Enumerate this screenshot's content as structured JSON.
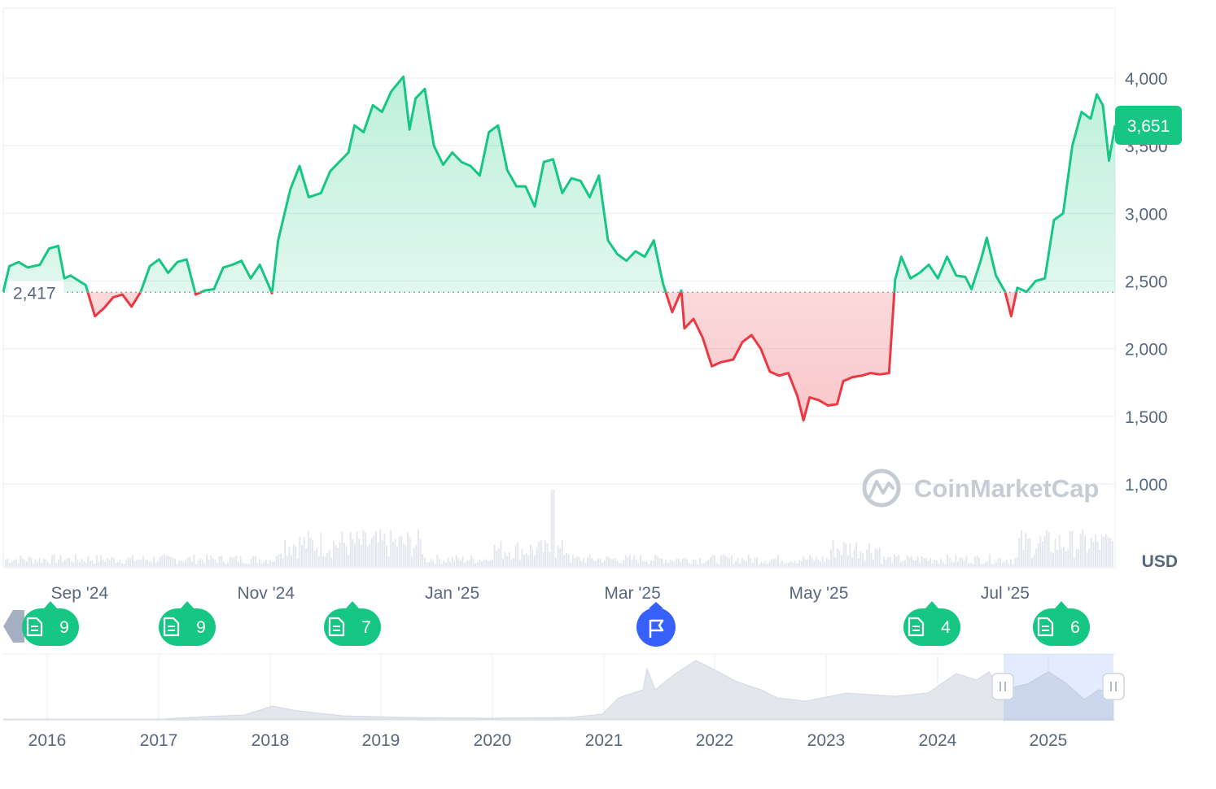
{
  "colors": {
    "up": "#16c784",
    "down": "#ea3943",
    "grid": "#eff2f5",
    "text": "#58667e",
    "volume": "#e4e8ee",
    "news_flag": "#3861fb",
    "navigator_fill": "#dfe3e9",
    "navigator_selection": "#dfe7fb"
  },
  "chart_data": {
    "type": "area",
    "currency_label": "USD",
    "y_ticks": [
      1000,
      1500,
      2000,
      2500,
      3000,
      3500,
      4000
    ],
    "y_tick_labels": [
      "1,000",
      "1,500",
      "2,000",
      "2,500",
      "3,000",
      "3,500",
      "4,000"
    ],
    "ylim": [
      900,
      4500
    ],
    "baseline_value": 2417,
    "baseline_label": "2,417",
    "current_price": 3651,
    "current_price_label": "3,651",
    "x_tick_labels": [
      "Sep '24",
      "Nov '24",
      "Jan '25",
      "Mar '25",
      "May '25",
      "Jul '25"
    ],
    "x_tick_dates": [
      "2024-09-01",
      "2024-11-01",
      "2025-01-01",
      "2025-03-01",
      "2025-05-01",
      "2025-07-01"
    ],
    "x_range": [
      "2024-08-07",
      "2025-08-06"
    ],
    "series": [
      {
        "points": [
          [
            "2024-08-07",
            2420
          ],
          [
            "2024-08-09",
            2610
          ],
          [
            "2024-08-12",
            2640
          ],
          [
            "2024-08-15",
            2600
          ],
          [
            "2024-08-19",
            2620
          ],
          [
            "2024-08-22",
            2740
          ],
          [
            "2024-08-25",
            2760
          ],
          [
            "2024-08-27",
            2520
          ],
          [
            "2024-08-29",
            2540
          ],
          [
            "2024-09-03",
            2470
          ],
          [
            "2024-09-06",
            2240
          ],
          [
            "2024-09-09",
            2300
          ],
          [
            "2024-09-12",
            2380
          ],
          [
            "2024-09-15",
            2400
          ],
          [
            "2024-09-18",
            2310
          ],
          [
            "2024-09-21",
            2420
          ],
          [
            "2024-09-24",
            2610
          ],
          [
            "2024-09-27",
            2660
          ],
          [
            "2024-09-30",
            2560
          ],
          [
            "2024-10-03",
            2640
          ],
          [
            "2024-10-06",
            2660
          ],
          [
            "2024-10-09",
            2400
          ],
          [
            "2024-10-12",
            2430
          ],
          [
            "2024-10-15",
            2440
          ],
          [
            "2024-10-18",
            2600
          ],
          [
            "2024-10-21",
            2620
          ],
          [
            "2024-10-24",
            2650
          ],
          [
            "2024-10-27",
            2520
          ],
          [
            "2024-10-30",
            2620
          ],
          [
            "2024-11-03",
            2410
          ],
          [
            "2024-11-05",
            2800
          ],
          [
            "2024-11-09",
            3180
          ],
          [
            "2024-11-12",
            3350
          ],
          [
            "2024-11-15",
            3120
          ],
          [
            "2024-11-19",
            3150
          ],
          [
            "2024-11-22",
            3310
          ],
          [
            "2024-11-25",
            3380
          ],
          [
            "2024-11-28",
            3450
          ],
          [
            "2024-11-30",
            3650
          ],
          [
            "2024-12-03",
            3600
          ],
          [
            "2024-12-06",
            3800
          ],
          [
            "2024-12-09",
            3750
          ],
          [
            "2024-12-12",
            3900
          ],
          [
            "2024-12-16",
            4010
          ],
          [
            "2024-12-18",
            3620
          ],
          [
            "2024-12-20",
            3850
          ],
          [
            "2024-12-23",
            3920
          ],
          [
            "2024-12-26",
            3500
          ],
          [
            "2024-12-29",
            3360
          ],
          [
            "2025-01-01",
            3450
          ],
          [
            "2025-01-04",
            3380
          ],
          [
            "2025-01-07",
            3350
          ],
          [
            "2025-01-10",
            3280
          ],
          [
            "2025-01-13",
            3600
          ],
          [
            "2025-01-16",
            3650
          ],
          [
            "2025-01-19",
            3320
          ],
          [
            "2025-01-22",
            3200
          ],
          [
            "2025-01-25",
            3200
          ],
          [
            "2025-01-28",
            3050
          ],
          [
            "2025-01-31",
            3380
          ],
          [
            "2025-02-03",
            3400
          ],
          [
            "2025-02-06",
            3150
          ],
          [
            "2025-02-09",
            3260
          ],
          [
            "2025-02-12",
            3240
          ],
          [
            "2025-02-15",
            3120
          ],
          [
            "2025-02-18",
            3280
          ],
          [
            "2025-02-21",
            2800
          ],
          [
            "2025-02-24",
            2700
          ],
          [
            "2025-02-27",
            2650
          ],
          [
            "2025-03-02",
            2720
          ],
          [
            "2025-03-05",
            2680
          ],
          [
            "2025-03-08",
            2800
          ],
          [
            "2025-03-11",
            2480
          ],
          [
            "2025-03-14",
            2270
          ],
          [
            "2025-03-17",
            2430
          ],
          [
            "2025-03-18",
            2150
          ],
          [
            "2025-03-21",
            2220
          ],
          [
            "2025-03-24",
            2080
          ],
          [
            "2025-03-27",
            1870
          ],
          [
            "2025-03-30",
            1900
          ],
          [
            "2025-04-03",
            1920
          ],
          [
            "2025-04-06",
            2050
          ],
          [
            "2025-04-09",
            2100
          ],
          [
            "2025-04-12",
            2000
          ],
          [
            "2025-04-15",
            1830
          ],
          [
            "2025-04-18",
            1800
          ],
          [
            "2025-04-21",
            1820
          ],
          [
            "2025-04-24",
            1650
          ],
          [
            "2025-04-26",
            1470
          ],
          [
            "2025-04-28",
            1640
          ],
          [
            "2025-05-01",
            1620
          ],
          [
            "2025-05-04",
            1580
          ],
          [
            "2025-05-07",
            1590
          ],
          [
            "2025-05-09",
            1760
          ],
          [
            "2025-05-12",
            1790
          ],
          [
            "2025-05-15",
            1800
          ],
          [
            "2025-05-18",
            1820
          ],
          [
            "2025-05-21",
            1810
          ],
          [
            "2025-05-24",
            1820
          ],
          [
            "2025-05-26",
            2510
          ],
          [
            "2025-05-28",
            2680
          ],
          [
            "2025-05-31",
            2520
          ],
          [
            "2025-06-03",
            2560
          ],
          [
            "2025-06-06",
            2620
          ],
          [
            "2025-06-09",
            2520
          ],
          [
            "2025-06-12",
            2680
          ],
          [
            "2025-06-15",
            2540
          ],
          [
            "2025-06-18",
            2530
          ],
          [
            "2025-06-20",
            2440
          ],
          [
            "2025-06-23",
            2650
          ],
          [
            "2025-06-25",
            2820
          ],
          [
            "2025-06-28",
            2540
          ],
          [
            "2025-07-01",
            2420
          ],
          [
            "2025-07-03",
            2240
          ],
          [
            "2025-07-05",
            2450
          ],
          [
            "2025-07-08",
            2420
          ],
          [
            "2025-07-11",
            2500
          ],
          [
            "2025-07-14",
            2520
          ],
          [
            "2025-07-17",
            2950
          ],
          [
            "2025-07-20",
            3000
          ],
          [
            "2025-07-23",
            3500
          ],
          [
            "2025-07-26",
            3750
          ],
          [
            "2025-07-29",
            3700
          ],
          [
            "2025-07-31",
            3880
          ],
          [
            "2025-08-02",
            3800
          ],
          [
            "2025-08-04",
            3390
          ],
          [
            "2025-08-06",
            3651
          ]
        ]
      }
    ],
    "navigator_x_tick_labels": [
      "2016",
      "2017",
      "2018",
      "2019",
      "2020",
      "2021",
      "2022",
      "2023",
      "2024",
      "2025"
    ]
  },
  "events": [
    {
      "kind": "news",
      "count": "9",
      "icon": "document-icon"
    },
    {
      "kind": "news",
      "count": "9",
      "icon": "document-icon"
    },
    {
      "kind": "news",
      "count": "7",
      "icon": "document-icon"
    },
    {
      "kind": "flag",
      "count": "",
      "icon": "flag-icon"
    },
    {
      "kind": "news",
      "count": "4",
      "icon": "document-icon"
    },
    {
      "kind": "news",
      "count": "6",
      "icon": "document-icon"
    }
  ],
  "watermark": {
    "text": "CoinMarketCap",
    "icon": "coinmarketcap-logo-icon"
  }
}
